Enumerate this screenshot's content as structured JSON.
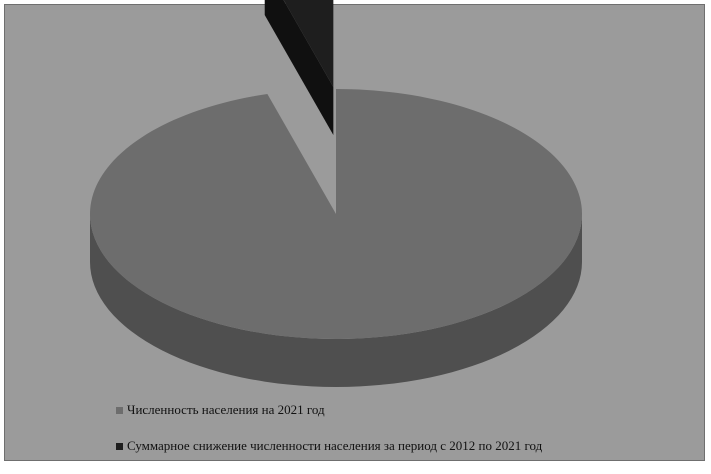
{
  "chart_data": {
    "type": "pie",
    "style": "3d-exploded",
    "title": "",
    "series": [
      {
        "name": "Численность населения на 2021 год",
        "value": 95.5,
        "color": "#6d6d6d",
        "side_color": "#4f4f4f"
      },
      {
        "name": "Суммарное снижение численности населения за период с 2012 по 2021 год",
        "value": 4.5,
        "color": "#1e1e1e",
        "side_color": "#101010"
      }
    ],
    "legend_position": "bottom-left",
    "background": "#9b9b9b"
  }
}
